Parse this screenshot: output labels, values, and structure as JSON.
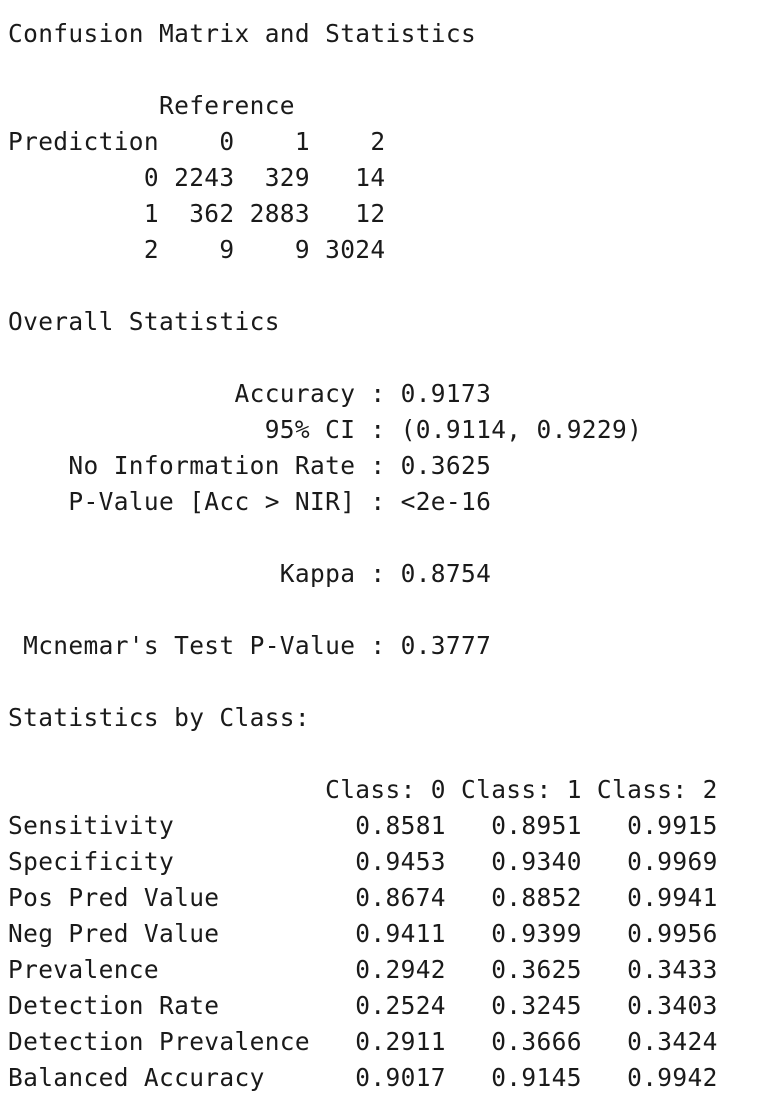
{
  "console": {
    "lines": [
      "Confusion Matrix and Statistics",
      "",
      "          Reference",
      "Prediction    0    1    2",
      "         0 2243  329   14",
      "         1  362 2883   12",
      "         2    9    9 3024",
      "",
      "Overall Statistics",
      "",
      "               Accuracy : 0.9173",
      "                 95% CI : (0.9114, 0.9229)",
      "    No Information Rate : 0.3625",
      "    P-Value [Acc > NIR] : <2e-16",
      "",
      "                  Kappa : 0.8754",
      "",
      " Mcnemar's Test P-Value : 0.3777",
      "",
      "Statistics by Class:",
      "",
      "                     Class: 0 Class: 1 Class: 2",
      "Sensitivity            0.8581   0.8951   0.9915",
      "Specificity            0.9453   0.9340   0.9969",
      "Pos Pred Value         0.8674   0.8852   0.9941",
      "Neg Pred Value         0.9411   0.9399   0.9956",
      "Prevalence             0.2942   0.3625   0.3433",
      "Detection Rate         0.2524   0.3245   0.3403",
      "Detection Prevalence   0.2911   0.3666   0.3424",
      "Balanced Accuracy      0.9017   0.9145   0.9942"
    ]
  }
}
